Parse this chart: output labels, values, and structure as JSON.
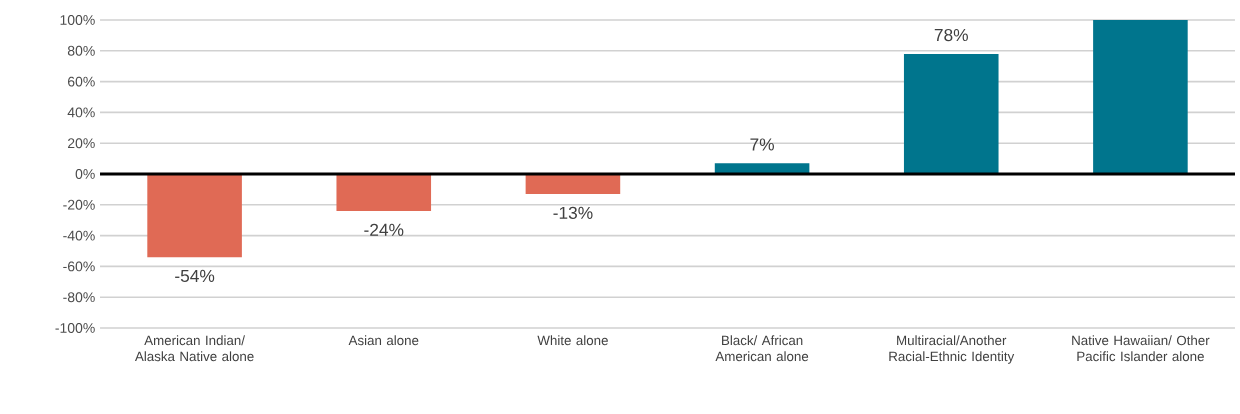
{
  "chart_data": {
    "type": "bar",
    "categories": [
      "American Indian/ Alaska Native alone",
      "Asian alone",
      "White alone",
      "Black/ African American alone",
      "Multiracial/Another Racial-Ethnic Identity",
      "Native Hawaiian/ Other Pacific Islander alone"
    ],
    "values": [
      -54,
      -24,
      -13,
      7,
      78,
      100
    ],
    "colors": [
      "#e06a55",
      "#e06a55",
      "#e06a55",
      "#00758d",
      "#00758d",
      "#00758d"
    ],
    "value_labels": [
      "-54%",
      "-24%",
      "-13%",
      "7%",
      "78%",
      null
    ],
    "ylim": [
      -100,
      100
    ],
    "yticks": [
      {
        "value": -100,
        "label": "-100%"
      },
      {
        "value": -80,
        "label": "-80%"
      },
      {
        "value": -60,
        "label": "-60%"
      },
      {
        "value": -40,
        "label": "-40%"
      },
      {
        "value": -20,
        "label": "-20%"
      },
      {
        "value": 0,
        "label": "0%"
      },
      {
        "value": 20,
        "label": "20%"
      },
      {
        "value": 40,
        "label": "40%"
      },
      {
        "value": 60,
        "label": "60%"
      },
      {
        "value": 80,
        "label": "80%"
      },
      {
        "value": 100,
        "label": "100%"
      }
    ],
    "grid": "y"
  }
}
